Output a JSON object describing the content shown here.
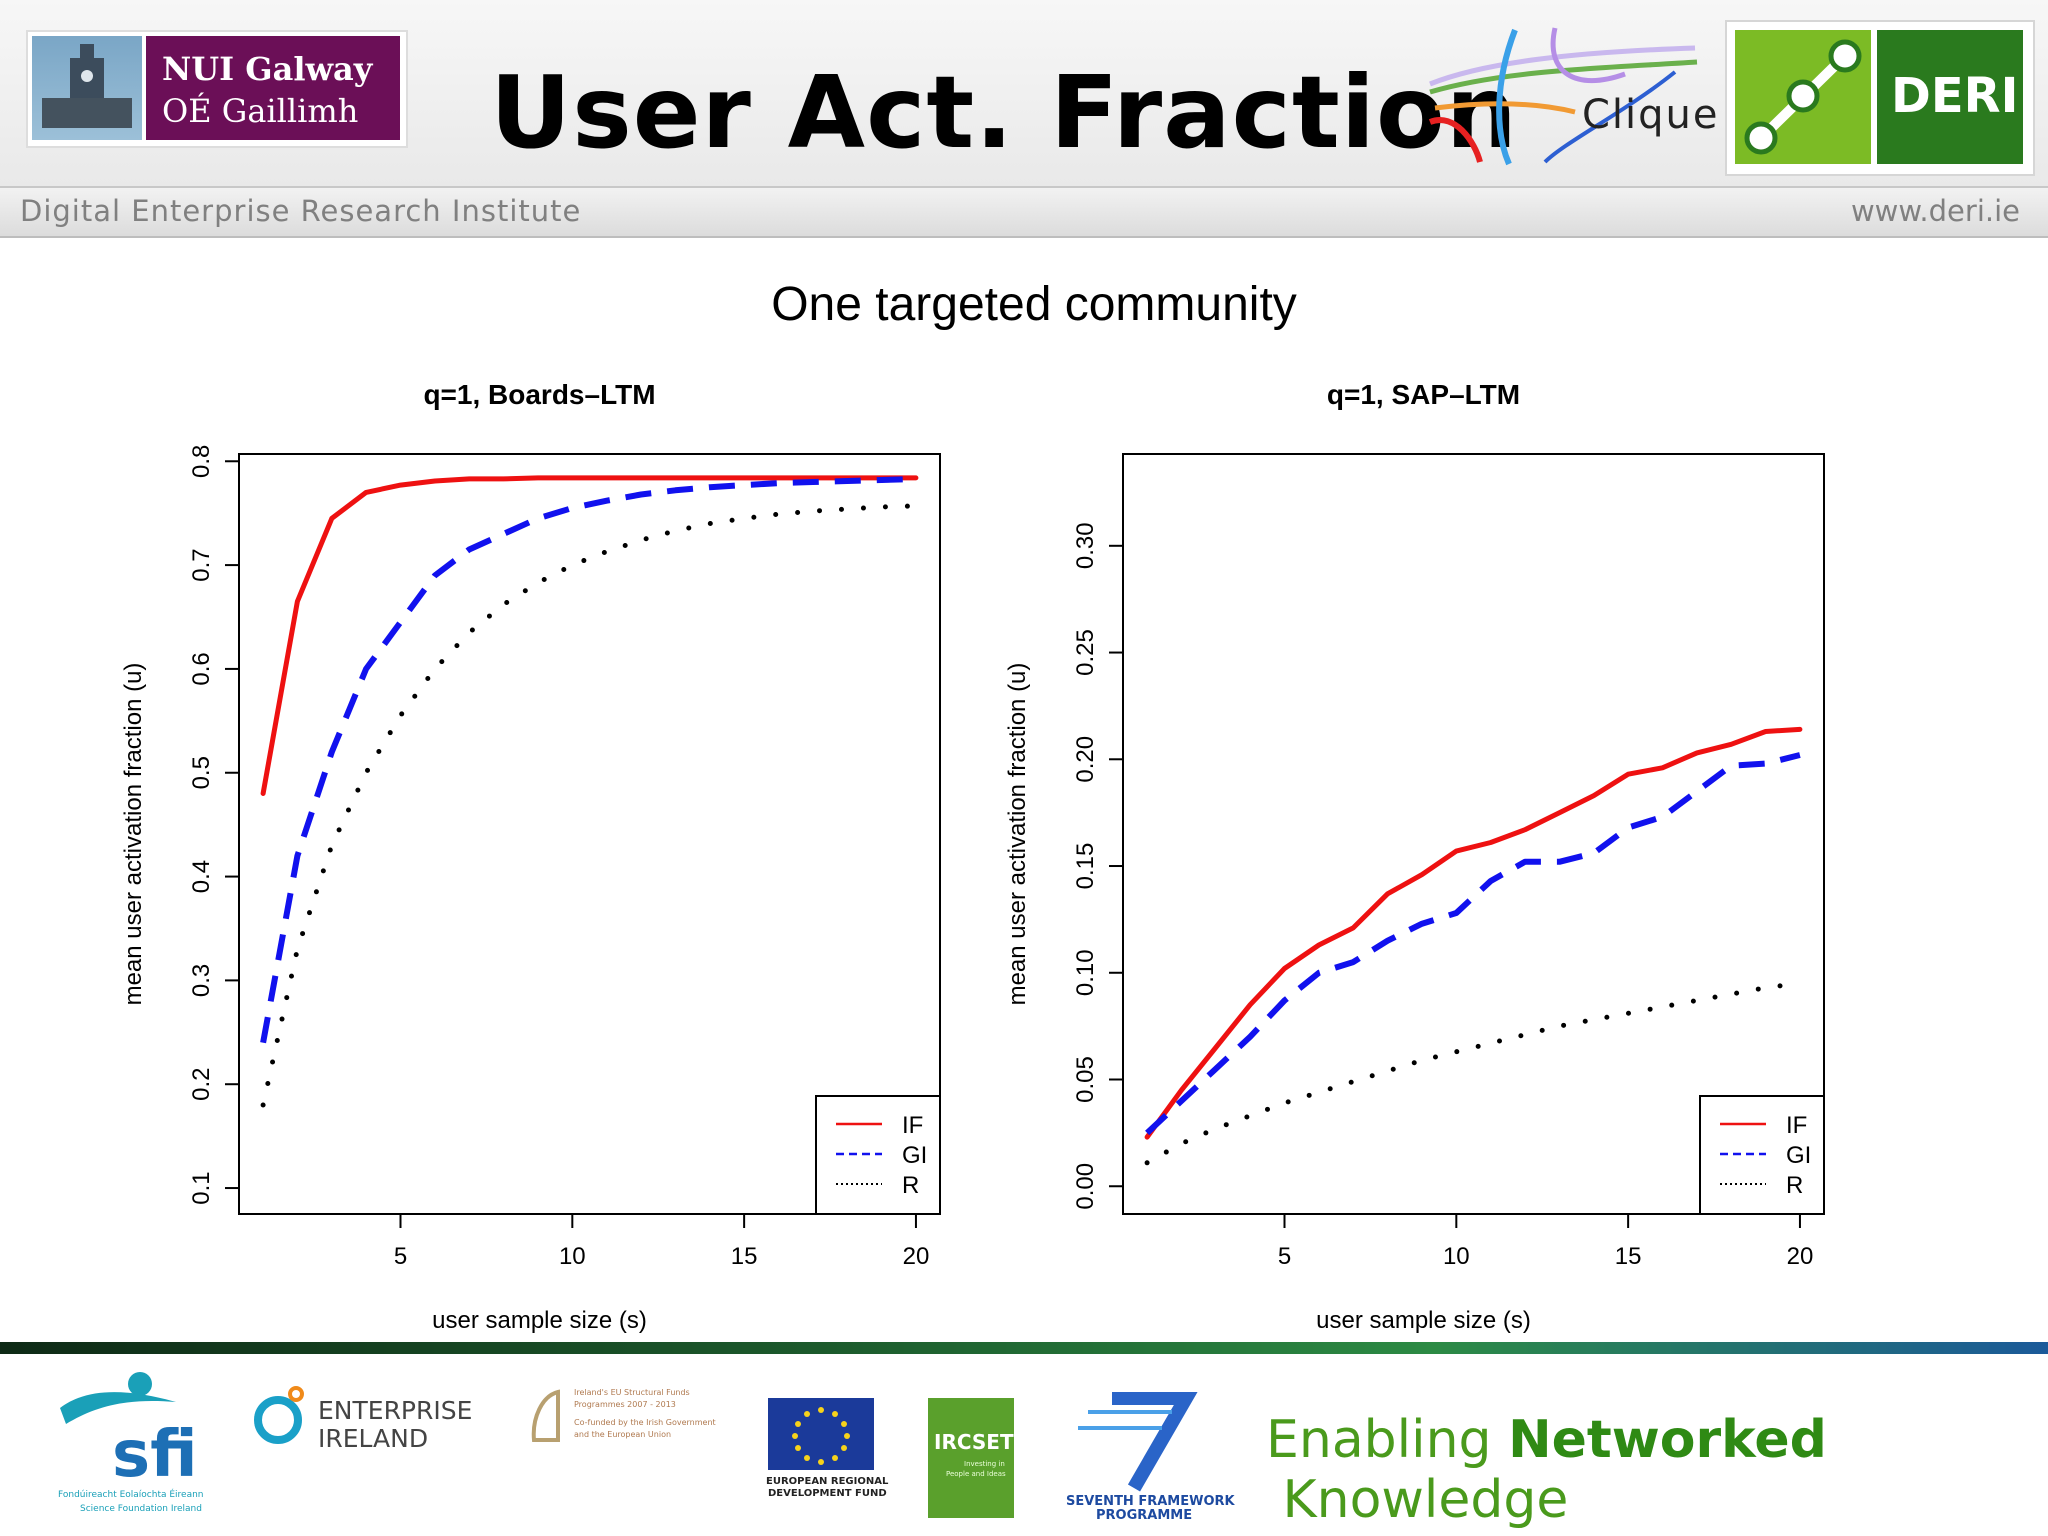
{
  "header": {
    "title": "User Act. Fraction",
    "institution_line1": "NUI Galway",
    "institution_line2": "OÉ Gaillimh",
    "project": "Clique",
    "lab": "DERI"
  },
  "subbar": {
    "left": "Digital Enterprise Research Institute",
    "right": "www.deri.ie"
  },
  "footer": {
    "sfi": "sfi",
    "sfi_sub1": "Fondúireacht Eolaíochta Éireann",
    "sfi_sub2": "Science Foundation Ireland",
    "ei1": "ENTERPRISE",
    "ei2": "IRELAND",
    "structural1": "Ireland's EU Structural Funds",
    "structural2": "Programmes 2007 - 2013",
    "structural3": "Co-funded by the Irish Government",
    "structural4": "and the European Union",
    "erdf1": "EUROPEAN REGIONAL",
    "erdf2": "DEVELOPMENT FUND",
    "ircset": "IRCSET",
    "ircset_sub1": "Investing in",
    "ircset_sub2": "People and Ideas",
    "fp7_1": "SEVENTH FRAMEWORK",
    "fp7_2": "PROGRAMME",
    "tagline_a": "Enabling ",
    "tagline_b": "Networked",
    "tagline_c": " Knowledge"
  },
  "figure_title": "One targeted community",
  "colors": {
    "IF": "#ee1111",
    "GI": "#1111ee",
    "R": "#000000"
  },
  "chart_data": [
    {
      "type": "line",
      "title": "q=1, Boards–LTM",
      "xlabel": "user sample size (s)",
      "ylabel": "mean user activation fraction (u)",
      "xlim": [
        0.3,
        20.7
      ],
      "ylim": [
        0.075,
        0.807
      ],
      "xticks": [
        5,
        10,
        15,
        20
      ],
      "xtick_labels": [
        "5",
        "10",
        "15",
        "20"
      ],
      "yticks": [
        0.1,
        0.2,
        0.3,
        0.4,
        0.5,
        0.6,
        0.7,
        0.8
      ],
      "ytick_labels": [
        "0.1",
        "0.2",
        "0.3",
        "0.4",
        "0.5",
        "0.6",
        "0.7",
        "0.8"
      ],
      "legend": "bottom-right",
      "x": [
        1,
        2,
        3,
        4,
        5,
        6,
        7,
        8,
        9,
        10,
        11,
        12,
        13,
        14,
        15,
        16,
        17,
        18,
        19,
        20
      ],
      "series": [
        {
          "name": "IF",
          "style": "solid",
          "values": [
            0.48,
            0.665,
            0.745,
            0.77,
            0.777,
            0.781,
            0.783,
            0.783,
            0.784,
            0.784,
            0.784,
            0.784,
            0.784,
            0.784,
            0.784,
            0.784,
            0.784,
            0.784,
            0.784,
            0.784
          ]
        },
        {
          "name": "GI",
          "style": "dashed",
          "values": [
            0.24,
            0.42,
            0.52,
            0.6,
            0.645,
            0.69,
            0.715,
            0.73,
            0.745,
            0.755,
            0.762,
            0.768,
            0.772,
            0.775,
            0.777,
            0.779,
            0.78,
            0.781,
            0.782,
            0.783
          ]
        },
        {
          "name": "R",
          "style": "dotted",
          "values": [
            0.18,
            0.33,
            0.43,
            0.5,
            0.555,
            0.6,
            0.635,
            0.662,
            0.683,
            0.7,
            0.713,
            0.724,
            0.733,
            0.74,
            0.745,
            0.749,
            0.752,
            0.754,
            0.756,
            0.757
          ]
        }
      ]
    },
    {
      "type": "line",
      "title": "q=1, SAP–LTM",
      "xlabel": "user sample size (s)",
      "ylabel": "mean user activation fraction (u)",
      "xlim": [
        0.3,
        20.7
      ],
      "ylim": [
        -0.013,
        0.343
      ],
      "xticks": [
        5,
        10,
        15,
        20
      ],
      "xtick_labels": [
        "5",
        "10",
        "15",
        "20"
      ],
      "yticks": [
        0.0,
        0.05,
        0.1,
        0.15,
        0.2,
        0.25,
        0.3
      ],
      "ytick_labels": [
        "0.00",
        "0.05",
        "0.10",
        "0.15",
        "0.20",
        "0.25",
        "0.30"
      ],
      "legend": "bottom-right",
      "x": [
        1,
        2,
        3,
        4,
        5,
        6,
        7,
        8,
        9,
        10,
        11,
        12,
        13,
        14,
        15,
        16,
        17,
        18,
        19,
        20
      ],
      "series": [
        {
          "name": "IF",
          "style": "solid",
          "values": [
            0.023,
            0.045,
            0.065,
            0.085,
            0.102,
            0.113,
            0.121,
            0.137,
            0.146,
            0.157,
            0.161,
            0.167,
            0.175,
            0.183,
            0.193,
            0.196,
            0.203,
            0.207,
            0.213,
            0.214
          ]
        },
        {
          "name": "GI",
          "style": "dashed",
          "values": [
            0.025,
            0.04,
            0.055,
            0.07,
            0.087,
            0.1,
            0.105,
            0.115,
            0.123,
            0.128,
            0.143,
            0.152,
            0.152,
            0.156,
            0.168,
            0.173,
            0.185,
            0.197,
            0.198,
            0.202
          ]
        },
        {
          "name": "R",
          "style": "dotted",
          "values": [
            0.011,
            0.02,
            0.027,
            0.033,
            0.039,
            0.044,
            0.049,
            0.054,
            0.059,
            0.063,
            0.067,
            0.071,
            0.075,
            0.078,
            0.081,
            0.084,
            0.087,
            0.09,
            0.093,
            0.095
          ]
        }
      ]
    }
  ]
}
